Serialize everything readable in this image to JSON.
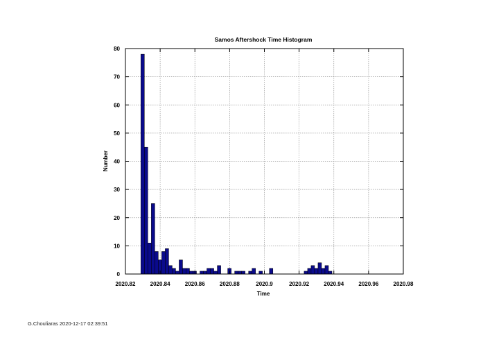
{
  "footer": {
    "author_stamp": "G.Chouliaras 2020-12-17 02:39:51"
  },
  "colors": {
    "bar_fill": "#0a0a8c",
    "bar_edge": "#000000",
    "grid": "#999999",
    "axis": "#000000"
  },
  "chart_data": {
    "type": "bar",
    "title": "Samos Aftershock Time Histogram",
    "xlabel": "Time",
    "ylabel": "Number",
    "xlim": [
      2020.82,
      2020.98
    ],
    "ylim": [
      0,
      80
    ],
    "xticks": [
      2020.82,
      2020.84,
      2020.86,
      2020.88,
      2020.9,
      2020.92,
      2020.94,
      2020.96,
      2020.98
    ],
    "xtick_labels": [
      "2020.82",
      "2020.84",
      "2020.86",
      "2020.88",
      "2020.9",
      "2020.92",
      "2020.94",
      "2020.96",
      "2020.98"
    ],
    "yticks": [
      0,
      10,
      20,
      30,
      40,
      50,
      60,
      70,
      80
    ],
    "ytick_labels": [
      "0",
      "10",
      "20",
      "30",
      "40",
      "50",
      "60",
      "70",
      "80"
    ],
    "grid": true,
    "bin_width": 0.002,
    "bin_starts": [
      2020.8289,
      2020.8309,
      2020.8329,
      2020.8349,
      2020.8369,
      2020.8389,
      2020.8409,
      2020.8429,
      2020.8449,
      2020.8469,
      2020.8489,
      2020.8509,
      2020.8529,
      2020.8549,
      2020.8569,
      2020.8589,
      2020.8609,
      2020.8629,
      2020.8649,
      2020.8669,
      2020.8689,
      2020.8709,
      2020.8729,
      2020.8749,
      2020.8769,
      2020.8789,
      2020.8809,
      2020.8829,
      2020.8849,
      2020.8869,
      2020.8889,
      2020.8909,
      2020.8929,
      2020.8949,
      2020.8969,
      2020.8989,
      2020.9009,
      2020.9029,
      2020.9049,
      2020.9069,
      2020.9089,
      2020.9109,
      2020.9129,
      2020.9149,
      2020.9169,
      2020.9189,
      2020.9209,
      2020.9229,
      2020.9249,
      2020.9269,
      2020.9289,
      2020.9309,
      2020.9329,
      2020.9349,
      2020.9369,
      2020.9389,
      2020.9409,
      2020.9429,
      2020.9449,
      2020.9469,
      2020.9489,
      2020.9509,
      2020.9529,
      2020.9549,
      2020.9569
    ],
    "values": [
      78,
      45,
      11,
      25,
      8,
      5,
      8,
      9,
      3,
      2,
      1,
      5,
      2,
      2,
      1,
      1,
      0,
      1,
      1,
      2,
      2,
      1,
      3,
      0,
      0,
      2,
      0,
      1,
      1,
      1,
      0,
      1,
      2,
      0,
      1,
      0,
      0,
      2,
      0,
      0,
      0,
      0,
      0,
      0,
      0,
      0,
      0,
      1,
      2,
      3,
      2,
      4,
      2,
      3,
      1,
      0,
      0,
      0,
      0,
      0,
      0,
      0,
      0,
      0,
      0
    ]
  }
}
